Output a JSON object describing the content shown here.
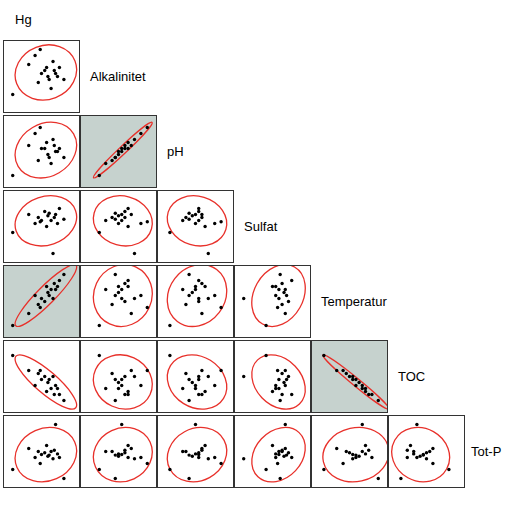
{
  "chart_data": {
    "type": "scatter_matrix",
    "color": "#000000",
    "variables": [
      {
        "name": "Hg",
        "lim": [
          0,
          100
        ],
        "values": [
          5,
          30,
          40,
          45,
          50,
          55,
          58,
          60,
          62,
          65,
          68,
          70,
          72,
          75,
          78,
          85,
          48
        ]
      },
      {
        "name": "Alkalinitet",
        "lim": [
          0,
          100
        ],
        "values": [
          20,
          70,
          85,
          40,
          55,
          60,
          65,
          50,
          45,
          30,
          75,
          60,
          55,
          50,
          65,
          45,
          95
        ]
      },
      {
        "name": "pH",
        "lim": [
          0,
          100
        ],
        "values": [
          10,
          60,
          80,
          35,
          55,
          55,
          65,
          45,
          40,
          30,
          70,
          60,
          50,
          50,
          55,
          40,
          90
        ]
      },
      {
        "name": "Sulfat",
        "lim": [
          0,
          100
        ],
        "values": [
          40,
          70,
          55,
          65,
          60,
          75,
          50,
          68,
          72,
          60,
          5,
          65,
          70,
          55,
          80,
          62,
          58
        ]
      },
      {
        "name": "Temperatur",
        "lim": [
          0,
          100
        ],
        "values": [
          10,
          30,
          60,
          45,
          55,
          50,
          75,
          65,
          60,
          70,
          55,
          80,
          70,
          75,
          85,
          95,
          40
        ]
      },
      {
        "name": "TOC",
        "lim": [
          0,
          100
        ],
        "values": [
          85,
          60,
          35,
          55,
          45,
          50,
          25,
          40,
          45,
          30,
          50,
          20,
          35,
          30,
          20,
          10,
          60
        ]
      },
      {
        "name": "Tot-P",
        "lim": [
          0,
          100
        ],
        "values": [
          20,
          55,
          40,
          50,
          45,
          48,
          60,
          42,
          44,
          50,
          38,
          52,
          95,
          46,
          40,
          5,
          30
        ]
      }
    ],
    "highlighted": [
      [
        "Alkalinitet",
        "pH"
      ],
      [
        "Hg",
        "Temperatur"
      ],
      [
        "Temperatur",
        "TOC"
      ]
    ]
  }
}
